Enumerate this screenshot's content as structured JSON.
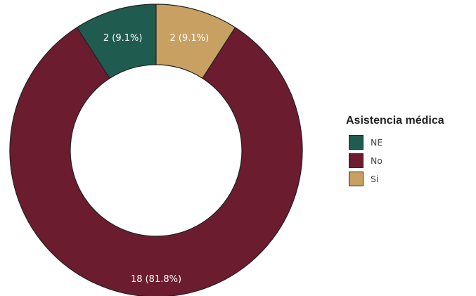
{
  "chart_data": {
    "type": "pie",
    "title": "",
    "legend_title": "Asistencia médica",
    "legend_position": "right",
    "categories": [
      "NE",
      "No",
      "Si"
    ],
    "values": [
      2,
      18,
      2
    ],
    "labels": [
      "2 (9.1%)",
      "18 (81.8%)",
      "2 (9.1%)"
    ],
    "colors": [
      "#1f5c4f",
      "#6b1c2f",
      "#c8a062"
    ]
  }
}
